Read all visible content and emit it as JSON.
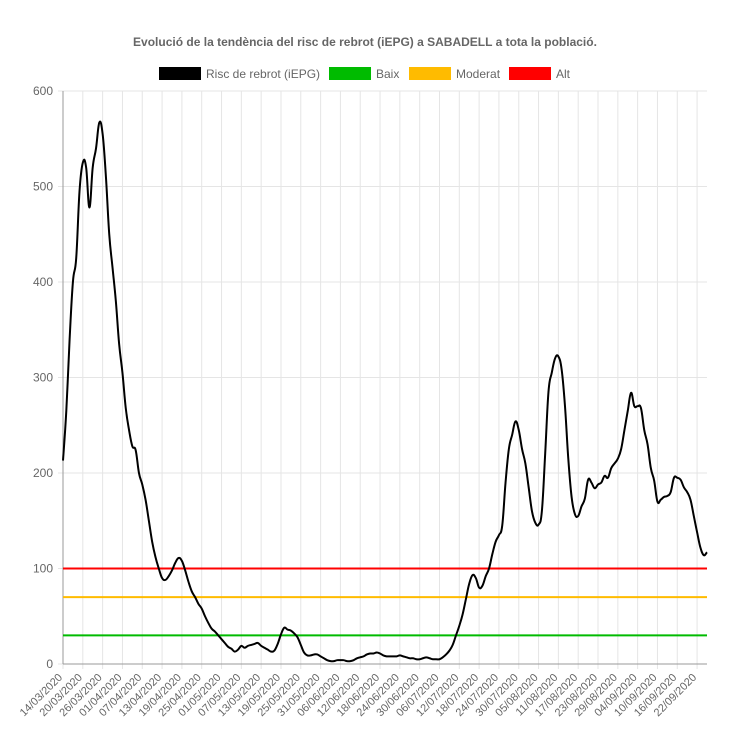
{
  "chart_data": {
    "type": "line",
    "title": "Evolució de la tendència del risc de rebrot (iEPG) a SABADELL a tota la població.",
    "xlabel": "",
    "ylabel": "",
    "ylim": [
      0,
      600
    ],
    "yticks": [
      0,
      100,
      200,
      300,
      400,
      500,
      600
    ],
    "x_start": "14/03/2020",
    "x_end": "25/09/2020",
    "x_tick_labels": [
      "14/03/2020",
      "20/03/2020",
      "26/03/2020",
      "01/04/2020",
      "07/04/2020",
      "13/04/2020",
      "19/04/2020",
      "25/04/2020",
      "01/05/2020",
      "07/05/2020",
      "13/05/2020",
      "19/05/2020",
      "25/05/2020",
      "31/05/2020",
      "06/06/2020",
      "12/06/2020",
      "18/06/2020",
      "24/06/2020",
      "30/06/2020",
      "06/07/2020",
      "12/07/2020",
      "18/07/2020",
      "24/07/2020",
      "30/07/2020",
      "05/08/2020",
      "11/08/2020",
      "17/08/2020",
      "23/08/2020",
      "29/08/2020",
      "04/09/2020",
      "10/09/2020",
      "16/09/2020",
      "22/09/2020"
    ],
    "grid": true,
    "legend_position": "top",
    "series": [
      {
        "name": "Risc de rebrot (iEPG)",
        "color": "#000000",
        "points": [
          [
            "14/03/2020",
            213
          ],
          [
            "15/03/2020",
            265
          ],
          [
            "16/03/2020",
            340
          ],
          [
            "17/03/2020",
            400
          ],
          [
            "18/03/2020",
            425
          ],
          [
            "19/03/2020",
            495
          ],
          [
            "20/03/2020",
            525
          ],
          [
            "21/03/2020",
            520
          ],
          [
            "22/03/2020",
            478
          ],
          [
            "23/03/2020",
            520
          ],
          [
            "24/03/2020",
            540
          ],
          [
            "25/03/2020",
            567
          ],
          [
            "26/03/2020",
            555
          ],
          [
            "27/03/2020",
            510
          ],
          [
            "28/03/2020",
            450
          ],
          [
            "29/03/2020",
            415
          ],
          [
            "30/03/2020",
            380
          ],
          [
            "31/03/2020",
            335
          ],
          [
            "01/04/2020",
            305
          ],
          [
            "02/04/2020",
            268
          ],
          [
            "03/04/2020",
            245
          ],
          [
            "04/04/2020",
            228
          ],
          [
            "05/04/2020",
            224
          ],
          [
            "06/04/2020",
            200
          ],
          [
            "07/04/2020",
            188
          ],
          [
            "08/04/2020",
            172
          ],
          [
            "09/04/2020",
            150
          ],
          [
            "10/04/2020",
            128
          ],
          [
            "11/04/2020",
            112
          ],
          [
            "12/04/2020",
            100
          ],
          [
            "13/04/2020",
            90
          ],
          [
            "14/04/2020",
            88
          ],
          [
            "15/04/2020",
            92
          ],
          [
            "16/04/2020",
            98
          ],
          [
            "17/04/2020",
            106
          ],
          [
            "18/04/2020",
            111
          ],
          [
            "19/04/2020",
            108
          ],
          [
            "20/04/2020",
            98
          ],
          [
            "21/04/2020",
            86
          ],
          [
            "22/04/2020",
            76
          ],
          [
            "23/04/2020",
            70
          ],
          [
            "24/04/2020",
            63
          ],
          [
            "25/04/2020",
            58
          ],
          [
            "26/04/2020",
            50
          ],
          [
            "27/04/2020",
            43
          ],
          [
            "28/04/2020",
            37
          ],
          [
            "29/04/2020",
            34
          ],
          [
            "30/04/2020",
            30
          ],
          [
            "01/05/2020",
            26
          ],
          [
            "02/05/2020",
            22
          ],
          [
            "03/05/2020",
            18
          ],
          [
            "04/05/2020",
            16
          ],
          [
            "05/05/2020",
            13
          ],
          [
            "06/05/2020",
            15
          ],
          [
            "07/05/2020",
            19
          ],
          [
            "08/05/2020",
            17
          ],
          [
            "09/05/2020",
            19
          ],
          [
            "10/05/2020",
            20
          ],
          [
            "11/05/2020",
            21
          ],
          [
            "12/05/2020",
            22
          ],
          [
            "13/05/2020",
            19
          ],
          [
            "14/05/2020",
            17
          ],
          [
            "15/05/2020",
            15
          ],
          [
            "16/05/2020",
            13
          ],
          [
            "17/05/2020",
            14
          ],
          [
            "18/05/2020",
            21
          ],
          [
            "19/05/2020",
            31
          ],
          [
            "20/05/2020",
            38
          ],
          [
            "21/05/2020",
            36
          ],
          [
            "22/05/2020",
            35
          ],
          [
            "23/05/2020",
            32
          ],
          [
            "24/05/2020",
            28
          ],
          [
            "25/05/2020",
            20
          ],
          [
            "26/05/2020",
            12
          ],
          [
            "27/05/2020",
            9
          ],
          [
            "28/05/2020",
            9
          ],
          [
            "29/05/2020",
            10
          ],
          [
            "30/05/2020",
            10
          ],
          [
            "31/05/2020",
            8
          ],
          [
            "01/06/2020",
            6
          ],
          [
            "02/06/2020",
            4
          ],
          [
            "03/06/2020",
            3
          ],
          [
            "04/06/2020",
            3
          ],
          [
            "05/06/2020",
            4
          ],
          [
            "06/06/2020",
            4
          ],
          [
            "07/06/2020",
            4
          ],
          [
            "08/06/2020",
            3
          ],
          [
            "09/06/2020",
            3
          ],
          [
            "10/06/2020",
            4
          ],
          [
            "11/06/2020",
            6
          ],
          [
            "12/06/2020",
            7
          ],
          [
            "13/06/2020",
            8
          ],
          [
            "14/06/2020",
            10
          ],
          [
            "15/06/2020",
            11
          ],
          [
            "16/06/2020",
            11
          ],
          [
            "17/06/2020",
            12
          ],
          [
            "18/06/2020",
            11
          ],
          [
            "19/06/2020",
            9
          ],
          [
            "20/06/2020",
            8
          ],
          [
            "21/06/2020",
            8
          ],
          [
            "22/06/2020",
            8
          ],
          [
            "23/06/2020",
            8
          ],
          [
            "24/06/2020",
            9
          ],
          [
            "25/06/2020",
            8
          ],
          [
            "26/06/2020",
            7
          ],
          [
            "27/06/2020",
            6
          ],
          [
            "28/06/2020",
            6
          ],
          [
            "29/06/2020",
            5
          ],
          [
            "30/06/2020",
            5
          ],
          [
            "01/07/2020",
            6
          ],
          [
            "02/07/2020",
            7
          ],
          [
            "03/07/2020",
            6
          ],
          [
            "04/07/2020",
            5
          ],
          [
            "05/07/2020",
            5
          ],
          [
            "06/07/2020",
            5
          ],
          [
            "07/07/2020",
            7
          ],
          [
            "08/07/2020",
            10
          ],
          [
            "09/07/2020",
            14
          ],
          [
            "10/07/2020",
            20
          ],
          [
            "11/07/2020",
            30
          ],
          [
            "12/07/2020",
            40
          ],
          [
            "13/07/2020",
            52
          ],
          [
            "14/07/2020",
            68
          ],
          [
            "15/07/2020",
            84
          ],
          [
            "16/07/2020",
            93
          ],
          [
            "17/07/2020",
            90
          ],
          [
            "18/07/2020",
            80
          ],
          [
            "19/07/2020",
            82
          ],
          [
            "20/07/2020",
            92
          ],
          [
            "21/07/2020",
            100
          ],
          [
            "22/07/2020",
            115
          ],
          [
            "23/07/2020",
            128
          ],
          [
            "24/07/2020",
            135
          ],
          [
            "25/07/2020",
            145
          ],
          [
            "26/07/2020",
            190
          ],
          [
            "27/07/2020",
            225
          ],
          [
            "28/07/2020",
            240
          ],
          [
            "29/07/2020",
            254
          ],
          [
            "30/07/2020",
            245
          ],
          [
            "31/07/2020",
            225
          ],
          [
            "01/08/2020",
            210
          ],
          [
            "02/08/2020",
            185
          ],
          [
            "03/08/2020",
            160
          ],
          [
            "04/08/2020",
            148
          ],
          [
            "05/08/2020",
            146
          ],
          [
            "06/08/2020",
            160
          ],
          [
            "07/08/2020",
            220
          ],
          [
            "08/08/2020",
            285
          ],
          [
            "09/08/2020",
            305
          ],
          [
            "10/08/2020",
            320
          ],
          [
            "11/08/2020",
            322
          ],
          [
            "12/08/2020",
            308
          ],
          [
            "13/08/2020",
            270
          ],
          [
            "14/08/2020",
            215
          ],
          [
            "15/08/2020",
            175
          ],
          [
            "16/08/2020",
            157
          ],
          [
            "17/08/2020",
            155
          ],
          [
            "18/08/2020",
            165
          ],
          [
            "19/08/2020",
            173
          ],
          [
            "20/08/2020",
            193
          ],
          [
            "21/08/2020",
            190
          ],
          [
            "22/08/2020",
            184
          ],
          [
            "23/08/2020",
            188
          ],
          [
            "24/08/2020",
            190
          ],
          [
            "25/08/2020",
            197
          ],
          [
            "26/08/2020",
            195
          ],
          [
            "27/08/2020",
            205
          ],
          [
            "28/08/2020",
            210
          ],
          [
            "29/08/2020",
            215
          ],
          [
            "30/08/2020",
            225
          ],
          [
            "31/08/2020",
            245
          ],
          [
            "01/09/2020",
            265
          ],
          [
            "02/09/2020",
            284
          ],
          [
            "03/09/2020",
            270
          ],
          [
            "04/09/2020",
            270
          ],
          [
            "05/09/2020",
            268
          ],
          [
            "06/09/2020",
            245
          ],
          [
            "07/09/2020",
            230
          ],
          [
            "08/09/2020",
            205
          ],
          [
            "09/09/2020",
            192
          ],
          [
            "10/09/2020",
            170
          ],
          [
            "11/09/2020",
            172
          ],
          [
            "12/09/2020",
            175
          ],
          [
            "13/09/2020",
            176
          ],
          [
            "14/09/2020",
            180
          ],
          [
            "15/09/2020",
            195
          ],
          [
            "16/09/2020",
            195
          ],
          [
            "17/09/2020",
            193
          ],
          [
            "18/09/2020",
            185
          ],
          [
            "19/09/2020",
            180
          ],
          [
            "20/09/2020",
            172
          ],
          [
            "21/09/2020",
            155
          ],
          [
            "22/09/2020",
            138
          ],
          [
            "23/09/2020",
            122
          ],
          [
            "24/09/2020",
            114
          ],
          [
            "25/09/2020",
            117
          ]
        ]
      },
      {
        "name": "Baix",
        "color": "#00bb00",
        "value": 30
      },
      {
        "name": "Moderat",
        "color": "#ffbb00",
        "value": 70
      },
      {
        "name": "Alt",
        "color": "#ff0000",
        "value": 100
      }
    ]
  }
}
